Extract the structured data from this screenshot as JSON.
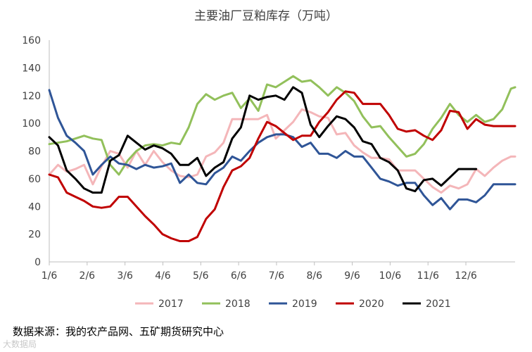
{
  "title": "主要油厂豆粕库存（万吨）",
  "source": "数据来源：我的农产品网、五矿期货研究中心",
  "watermark": "大数据局",
  "chart_data": {
    "type": "line",
    "title": "主要油厂豆粕库存（万吨）",
    "xlabel": "",
    "ylabel": "",
    "ylim": [
      0,
      160
    ],
    "yticks": [
      0,
      20,
      40,
      60,
      80,
      100,
      120,
      140,
      160
    ],
    "xlim": [
      1,
      13.3
    ],
    "xticks": [
      {
        "pos": 1,
        "label": "1/6"
      },
      {
        "pos": 2,
        "label": "2/6"
      },
      {
        "pos": 3,
        "label": "3/6"
      },
      {
        "pos": 4,
        "label": "4/6"
      },
      {
        "pos": 5,
        "label": "5/6"
      },
      {
        "pos": 6,
        "label": "6/6"
      },
      {
        "pos": 7,
        "label": "7/6"
      },
      {
        "pos": 8,
        "label": "8/6"
      },
      {
        "pos": 9,
        "label": "9/6"
      },
      {
        "pos": 10,
        "label": "10/6"
      },
      {
        "pos": 11,
        "label": "11/6"
      },
      {
        "pos": 12,
        "label": "12/6"
      }
    ],
    "grid": false,
    "legend_position": "bottom",
    "series": [
      {
        "name": "2017",
        "color": "#f4b6b9",
        "x": [
          1.0,
          1.23,
          1.46,
          1.69,
          1.92,
          2.15,
          2.38,
          2.61,
          2.84,
          3.07,
          3.3,
          3.53,
          3.76,
          3.99,
          4.22,
          4.45,
          4.68,
          4.91,
          5.14,
          5.37,
          5.6,
          5.83,
          6.06,
          6.29,
          6.52,
          6.75,
          6.98,
          7.21,
          7.44,
          7.67,
          7.9,
          8.13,
          8.36,
          8.59,
          8.82,
          9.05,
          9.28,
          9.51,
          9.74,
          9.97,
          10.2,
          10.43,
          10.66,
          10.89,
          11.12,
          11.35,
          11.58,
          11.81,
          12.04,
          12.27,
          12.5,
          12.73,
          12.96,
          13.19,
          13.3
        ],
        "y": [
          63,
          70,
          65,
          67,
          70,
          56,
          69,
          80,
          78,
          68,
          80,
          70,
          80,
          72,
          66,
          62,
          61,
          63,
          76,
          79,
          86,
          103,
          103,
          103,
          103,
          106,
          89,
          95,
          101,
          110,
          108,
          105,
          104,
          92,
          93,
          84,
          79,
          75,
          75,
          74,
          66,
          66,
          66,
          60,
          54,
          50,
          55,
          53,
          56,
          67,
          62,
          68,
          73,
          76,
          76
        ]
      },
      {
        "name": "2018",
        "color": "#92c05b",
        "x": [
          1.0,
          1.23,
          1.46,
          1.69,
          1.92,
          2.15,
          2.38,
          2.61,
          2.84,
          3.07,
          3.3,
          3.53,
          3.76,
          3.99,
          4.22,
          4.45,
          4.68,
          4.91,
          5.14,
          5.37,
          5.6,
          5.83,
          6.06,
          6.29,
          6.52,
          6.75,
          6.98,
          7.21,
          7.44,
          7.67,
          7.9,
          8.13,
          8.36,
          8.59,
          8.82,
          9.05,
          9.28,
          9.51,
          9.74,
          9.97,
          10.2,
          10.43,
          10.66,
          10.89,
          11.12,
          11.35,
          11.58,
          11.81,
          12.04,
          12.27,
          12.5,
          12.73,
          12.96,
          13.19,
          13.3
        ],
        "y": [
          85,
          86,
          87,
          89,
          91,
          89,
          88,
          70,
          63,
          73,
          80,
          84,
          85,
          84,
          86,
          85,
          97,
          114,
          121,
          117,
          120,
          122,
          111,
          118,
          109,
          128,
          126,
          130,
          134,
          130,
          131,
          126,
          120,
          126,
          122,
          116,
          105,
          97,
          98,
          90,
          83,
          76,
          78,
          85,
          96,
          104,
          114,
          106,
          101,
          106,
          101,
          103,
          110,
          125,
          126
        ]
      },
      {
        "name": "2019",
        "color": "#2f5597",
        "x": [
          1.0,
          1.23,
          1.46,
          1.69,
          1.92,
          2.15,
          2.38,
          2.61,
          2.84,
          3.07,
          3.3,
          3.53,
          3.76,
          3.99,
          4.22,
          4.45,
          4.68,
          4.91,
          5.14,
          5.37,
          5.6,
          5.83,
          6.06,
          6.29,
          6.52,
          6.75,
          6.98,
          7.21,
          7.44,
          7.67,
          7.9,
          8.13,
          8.36,
          8.59,
          8.82,
          9.05,
          9.28,
          9.51,
          9.74,
          9.97,
          10.2,
          10.43,
          10.66,
          10.89,
          11.12,
          11.35,
          11.58,
          11.81,
          12.04,
          12.27,
          12.5,
          12.73,
          12.96,
          13.19,
          13.3
        ],
        "y": [
          124,
          104,
          91,
          86,
          80,
          63,
          70,
          76,
          71,
          70,
          67,
          70,
          68,
          69,
          71,
          57,
          63,
          57,
          56,
          64,
          68,
          76,
          73,
          80,
          86,
          90,
          92,
          92,
          90,
          83,
          86,
          78,
          78,
          75,
          80,
          76,
          76,
          68,
          60,
          58,
          55,
          57,
          57,
          48,
          41,
          46,
          38,
          45,
          45,
          43,
          48,
          56,
          56,
          56,
          56
        ]
      },
      {
        "name": "2020",
        "color": "#c00000",
        "x": [
          1.0,
          1.23,
          1.46,
          1.69,
          1.92,
          2.15,
          2.38,
          2.61,
          2.84,
          3.07,
          3.3,
          3.53,
          3.76,
          3.99,
          4.22,
          4.45,
          4.68,
          4.91,
          5.14,
          5.37,
          5.6,
          5.83,
          6.06,
          6.29,
          6.52,
          6.75,
          6.98,
          7.21,
          7.44,
          7.67,
          7.9,
          8.13,
          8.36,
          8.59,
          8.82,
          9.05,
          9.28,
          9.51,
          9.74,
          9.97,
          10.2,
          10.43,
          10.66,
          10.89,
          11.12,
          11.35,
          11.58,
          11.81,
          12.04,
          12.27,
          12.5,
          12.73,
          12.96,
          13.19,
          13.3
        ],
        "y": [
          63,
          61,
          50,
          47,
          44,
          40,
          39,
          40,
          47,
          47,
          40,
          33,
          27,
          20,
          17,
          15,
          15,
          18,
          31,
          38,
          54,
          66,
          69,
          75,
          89,
          101,
          98,
          93,
          88,
          91,
          91,
          101,
          108,
          117,
          123,
          122,
          114,
          114,
          114,
          106,
          96,
          94,
          95,
          91,
          88,
          95,
          109,
          108,
          96,
          103,
          99,
          98,
          98,
          98,
          98
        ]
      },
      {
        "name": "2021",
        "color": "#000000",
        "x": [
          1.0,
          1.23,
          1.46,
          1.69,
          1.92,
          2.15,
          2.38,
          2.61,
          2.84,
          3.07,
          3.3,
          3.53,
          3.76,
          3.99,
          4.22,
          4.45,
          4.68,
          4.91,
          5.14,
          5.37,
          5.6,
          5.83,
          6.06,
          6.29,
          6.52,
          6.75,
          6.98,
          7.21,
          7.44,
          7.67,
          7.9,
          8.13,
          8.36,
          8.59,
          8.82,
          9.05,
          9.28,
          9.51,
          9.74,
          9.97,
          10.2,
          10.43,
          10.66,
          10.89,
          11.12,
          11.35,
          11.58,
          11.81,
          12.04,
          12.27
        ],
        "y": [
          90,
          84,
          66,
          60,
          53,
          50,
          50,
          73,
          77,
          91,
          86,
          81,
          84,
          82,
          78,
          70,
          70,
          75,
          62,
          68,
          72,
          89,
          97,
          120,
          117,
          119,
          120,
          117,
          126,
          122,
          99,
          90,
          98,
          105,
          103,
          97,
          87,
          85,
          75,
          72,
          66,
          53,
          51,
          59,
          60,
          55,
          61,
          67,
          67,
          67
        ]
      }
    ]
  }
}
